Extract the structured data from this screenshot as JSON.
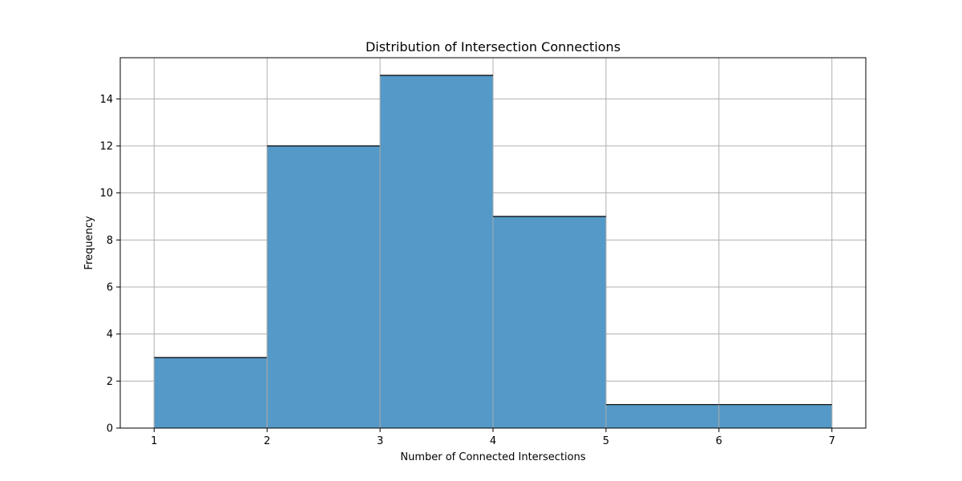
{
  "chart_data": {
    "type": "bar",
    "subtype": "histogram",
    "title": "Distribution of Intersection Connections",
    "xlabel": "Number of Connected Intersections",
    "ylabel": "Frequency",
    "bins": [
      {
        "start": 1,
        "end": 2,
        "value": 3
      },
      {
        "start": 2,
        "end": 3,
        "value": 12
      },
      {
        "start": 3,
        "end": 4,
        "value": 15
      },
      {
        "start": 4,
        "end": 5,
        "value": 9
      },
      {
        "start": 5,
        "end": 6,
        "value": 1
      },
      {
        "start": 6,
        "end": 7,
        "value": 1
      }
    ],
    "xlim": [
      0.7,
      7.3
    ],
    "ylim": [
      0,
      15.75
    ],
    "xticks": [
      1,
      2,
      3,
      4,
      5,
      6,
      7
    ],
    "yticks": [
      0,
      2,
      4,
      6,
      8,
      10,
      12,
      14
    ],
    "grid": true,
    "bar_color": "#5499c7"
  }
}
